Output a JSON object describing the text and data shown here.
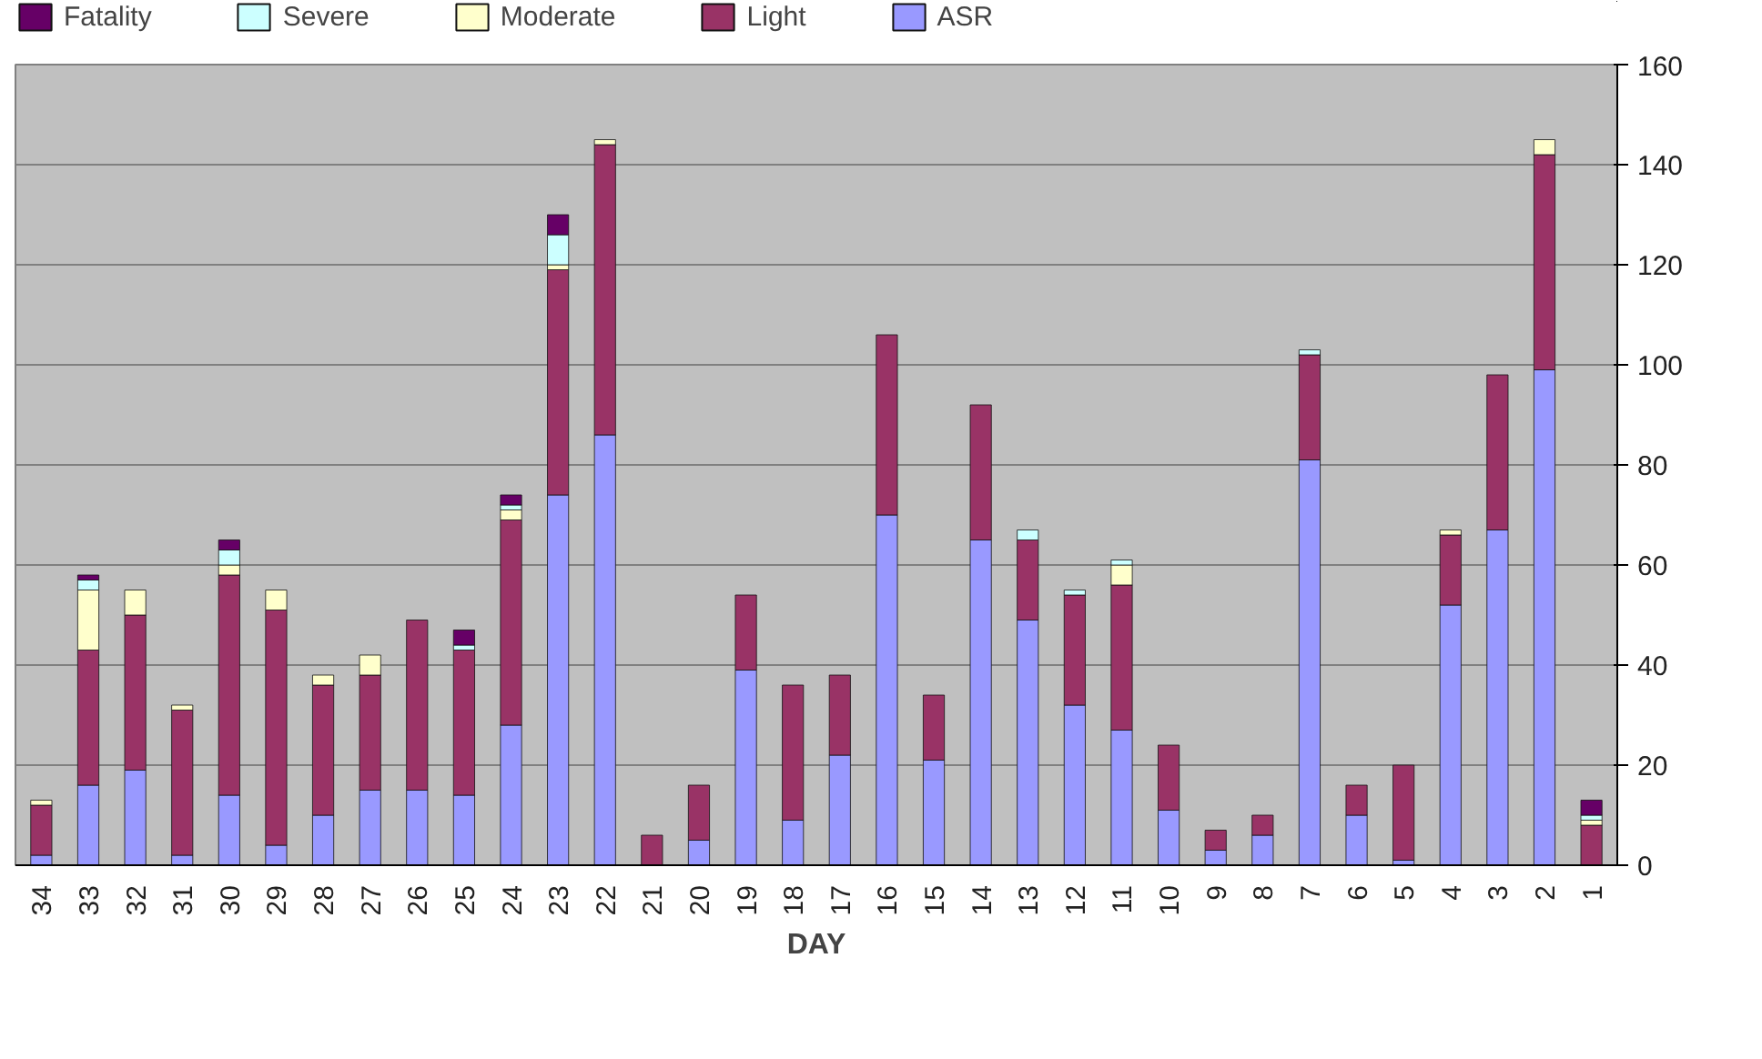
{
  "chart_data": {
    "type": "bar",
    "stacked": true,
    "xlabel": "DAY",
    "categories": [
      "34",
      "33",
      "32",
      "31",
      "30",
      "29",
      "28",
      "27",
      "26",
      "25",
      "24",
      "23",
      "22",
      "21",
      "20",
      "19",
      "18",
      "17",
      "16",
      "15",
      "14",
      "13",
      "12",
      "11",
      "10",
      "9",
      "8",
      "7",
      "6",
      "5",
      "4",
      "3",
      "2",
      "1"
    ],
    "series": [
      {
        "name": "ASR",
        "color": "#9999ff",
        "values": [
          2,
          16,
          19,
          2,
          14,
          4,
          10,
          15,
          15,
          14,
          28,
          74,
          86,
          0,
          5,
          39,
          9,
          22,
          70,
          21,
          65,
          49,
          32,
          27,
          11,
          3,
          6,
          81,
          10,
          1,
          52,
          67,
          99,
          0
        ]
      },
      {
        "name": "Light",
        "color": "#993366",
        "values": [
          10,
          27,
          31,
          29,
          44,
          47,
          26,
          23,
          34,
          29,
          41,
          45,
          58,
          6,
          11,
          15,
          27,
          16,
          36,
          13,
          27,
          16,
          22,
          29,
          13,
          4,
          4,
          21,
          6,
          19,
          14,
          31,
          43,
          8
        ]
      },
      {
        "name": "Moderate",
        "color": "#ffffcc",
        "values": [
          1,
          12,
          5,
          1,
          2,
          4,
          2,
          4,
          0,
          0,
          2,
          1,
          1,
          0,
          0,
          0,
          0,
          0,
          0,
          0,
          0,
          0,
          0,
          4,
          0,
          0,
          0,
          0,
          0,
          0,
          1,
          0,
          3,
          1
        ]
      },
      {
        "name": "Severe",
        "color": "#ccffff",
        "values": [
          0,
          2,
          0,
          0,
          3,
          0,
          0,
          0,
          0,
          1,
          1,
          6,
          0,
          0,
          0,
          0,
          0,
          0,
          0,
          0,
          0,
          2,
          1,
          1,
          0,
          0,
          0,
          1,
          0,
          0,
          0,
          0,
          0,
          1
        ]
      },
      {
        "name": "Fatality",
        "color": "#660066",
        "values": [
          0,
          1,
          0,
          0,
          2,
          0,
          0,
          0,
          0,
          3,
          2,
          4,
          0,
          0,
          0,
          0,
          0,
          0,
          0,
          0,
          0,
          0,
          0,
          0,
          0,
          0,
          0,
          0,
          0,
          0,
          0,
          0,
          0,
          3
        ]
      }
    ],
    "ylim": [
      0,
      160
    ],
    "yticks": [
      0,
      20,
      40,
      60,
      80,
      100,
      120,
      140,
      160
    ],
    "grid": "y",
    "legend": "top"
  }
}
